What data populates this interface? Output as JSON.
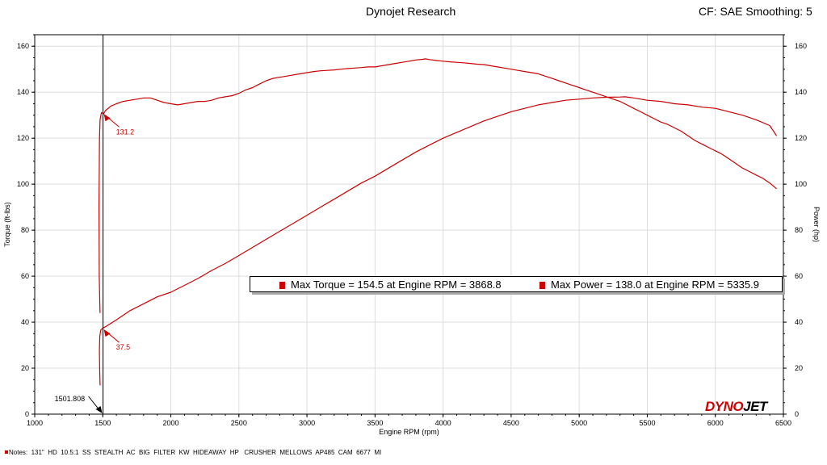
{
  "header": {
    "title": "Dynojet Research",
    "correction": "CF: SAE Smoothing: 5"
  },
  "logo": {
    "part1": "DYNO",
    "part2": "JET"
  },
  "legend": {
    "max_torque": "Max Torque = 154.5 at Engine RPM = 3868.8",
    "max_power": "Max Power = 138.0 at Engine RPM = 5335.9"
  },
  "notes": "Notes:  131\"  HD  10.5:1  SS  STEALTH  AC  BIG  FILTER  KW  HIDEAWAY  HP   CRUSHER  MELLOWS  AP485  CAM  6677  MI",
  "colors": {
    "curve": "#cc0000",
    "grid": "#dddddd",
    "frame": "#000000"
  },
  "chart_data": {
    "type": "line",
    "title": "Dynojet Research",
    "xlabel": "Engine RPM (rpm)",
    "ylabel": "Torque (ft-lbs)",
    "y2label": "Power (hp)",
    "xlim": [
      1000,
      6500
    ],
    "ylim": [
      0,
      165
    ],
    "y2lim": [
      0,
      165
    ],
    "x_ticks": [
      1000,
      1500,
      2000,
      2500,
      3000,
      3500,
      4000,
      4500,
      5000,
      5500,
      6000,
      6500
    ],
    "y_ticks": [
      0,
      20,
      40,
      60,
      80,
      100,
      120,
      140,
      160
    ],
    "grid": true,
    "legend_position": "middle-right",
    "series": [
      {
        "name": "Torque",
        "axis": "left",
        "x": [
          1480,
          1478,
          1474,
          1472,
          1476,
          1480,
          1490,
          1505,
          1520,
          1560,
          1600,
          1650,
          1700,
          1750,
          1800,
          1850,
          1900,
          1950,
          2000,
          2050,
          2100,
          2150,
          2200,
          2250,
          2300,
          2350,
          2400,
          2450,
          2500,
          2550,
          2600,
          2650,
          2700,
          2750,
          2800,
          2850,
          2900,
          2950,
          3000,
          3050,
          3100,
          3150,
          3200,
          3250,
          3300,
          3350,
          3400,
          3450,
          3500,
          3550,
          3600,
          3650,
          3700,
          3750,
          3800,
          3850,
          3868.8,
          3900,
          3950,
          4000,
          4050,
          4100,
          4150,
          4200,
          4250,
          4300,
          4350,
          4400,
          4450,
          4500,
          4550,
          4600,
          4650,
          4700,
          4750,
          4800,
          4850,
          4900,
          4950,
          5000,
          5050,
          5100,
          5150,
          5200,
          5250,
          5300,
          5350,
          5400,
          5450,
          5500,
          5550,
          5600,
          5650,
          5700,
          5750,
          5800,
          5850,
          5900,
          5950,
          6000,
          6050,
          6100,
          6150,
          6200,
          6250,
          6300,
          6350,
          6400,
          6450
        ],
        "values": [
          44,
          48,
          60,
          90,
          120,
          128,
          131.2,
          130.5,
          132,
          134,
          135,
          136,
          136.5,
          137,
          137.5,
          137.5,
          136.5,
          135.5,
          135,
          134.5,
          135,
          135.5,
          136,
          136,
          136.5,
          137.5,
          138,
          138.5,
          139.5,
          141,
          142,
          143.5,
          145,
          146,
          146.5,
          147,
          147.5,
          148,
          148.5,
          149,
          149.3,
          149.5,
          149.7,
          150,
          150.3,
          150.5,
          150.7,
          151,
          151,
          151.5,
          152,
          152.5,
          153,
          153.5,
          154,
          154.3,
          154.5,
          154.2,
          153.8,
          153.5,
          153.2,
          153,
          152.8,
          152.5,
          152.2,
          152,
          151.5,
          151,
          150.5,
          150,
          149.5,
          149,
          148.5,
          148,
          147,
          146,
          145,
          144,
          143,
          142,
          141,
          140,
          139,
          138,
          137,
          136,
          134.5,
          133,
          131.5,
          130,
          128.5,
          127,
          126,
          124.5,
          123,
          121,
          119,
          117.5,
          116,
          114.5,
          113,
          111,
          109,
          107,
          105.5,
          104,
          102.5,
          100.5,
          98
        ]
      },
      {
        "name": "Power",
        "axis": "right",
        "x": [
          1480,
          1477,
          1475,
          1478,
          1485,
          1501.808,
          1520,
          1600,
          1700,
          1800,
          1900,
          2000,
          2100,
          2200,
          2300,
          2400,
          2500,
          2600,
          2700,
          2800,
          2900,
          3000,
          3100,
          3200,
          3300,
          3400,
          3500,
          3600,
          3700,
          3800,
          3900,
          4000,
          4100,
          4200,
          4300,
          4400,
          4500,
          4600,
          4700,
          4800,
          4900,
          5000,
          5100,
          5200,
          5300,
          5335.9,
          5400,
          5500,
          5600,
          5700,
          5800,
          5900,
          6000,
          6100,
          6200,
          6300,
          6400,
          6450
        ],
        "values": [
          12.5,
          20,
          28,
          34,
          36.5,
          37.5,
          38,
          41,
          45,
          48,
          51,
          53,
          56,
          59,
          62.5,
          65.5,
          69,
          72.5,
          76,
          79.5,
          83,
          86.5,
          90,
          93.5,
          97,
          100.5,
          103.5,
          107,
          110.5,
          114,
          117,
          120,
          122.5,
          125,
          127.5,
          129.5,
          131.5,
          133,
          134.5,
          135.5,
          136.5,
          137,
          137.5,
          137.8,
          137.9,
          138,
          137.5,
          136.5,
          136,
          135,
          134.5,
          133.5,
          133,
          131.5,
          130,
          128,
          125.5,
          121
        ]
      }
    ],
    "annotations": [
      {
        "label": "131.2",
        "x": 1501.808,
        "y": 131.2
      },
      {
        "label": "37.5",
        "x": 1501.808,
        "y": 37.5
      },
      {
        "label": "1501.808",
        "x": 1501.808,
        "y": 0
      }
    ]
  }
}
